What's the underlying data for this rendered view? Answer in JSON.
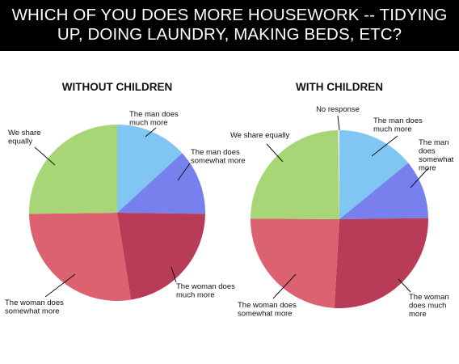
{
  "header": {
    "line1": "WHICH OF YOU DOES MORE HOUSEWORK -- TIDYING",
    "line2": "UP, DOING LAUNDRY, MAKING BEDS, ETC?"
  },
  "colors": {
    "man_much": "#7fc6f2",
    "man_somewhat": "#7880ee",
    "woman_much": "#b83b57",
    "woman_somewhat": "#dd6271",
    "share": "#a8d676",
    "no_response": "#ffffff"
  },
  "chart_data": [
    {
      "type": "pie",
      "title": "WITHOUT CHILDREN",
      "slices": [
        {
          "key": "man_much",
          "label": "The man does much more",
          "value": 13.2
        },
        {
          "key": "man_somewhat",
          "label": "The man does somewhat more",
          "value": 12.0
        },
        {
          "key": "woman_much",
          "label": "The woman does much more",
          "value": 22.3
        },
        {
          "key": "woman_somewhat",
          "label": "The woman does somewhat more",
          "value": 27.3
        },
        {
          "key": "share",
          "label": "We share equally",
          "value": 25.2
        }
      ]
    },
    {
      "type": "pie",
      "title": "WITH CHILDREN",
      "slices": [
        {
          "key": "man_much",
          "label": "The man does much more",
          "value": 14.1
        },
        {
          "key": "man_somewhat",
          "label": "The man does somewhat more",
          "value": 10.7
        },
        {
          "key": "woman_much",
          "label": "The woman does much more",
          "value": 26.1
        },
        {
          "key": "woman_somewhat",
          "label": "The woman does somewhat more",
          "value": 24.2
        },
        {
          "key": "share",
          "label": "We share equally",
          "value": 24.7
        },
        {
          "key": "no_response",
          "label": "No response",
          "value": 0.2
        }
      ]
    }
  ]
}
